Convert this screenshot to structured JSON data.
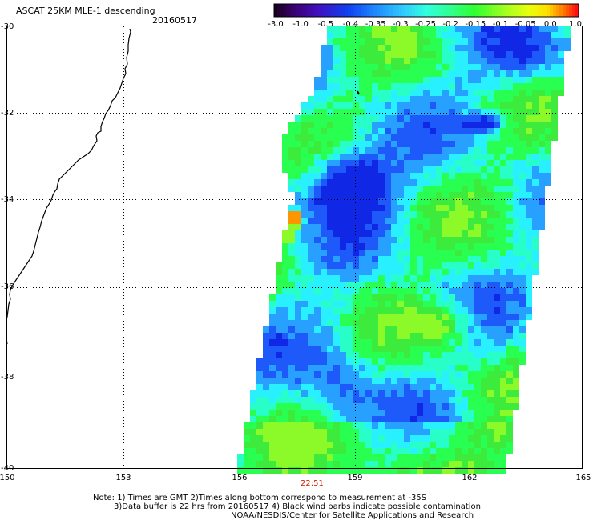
{
  "header": {
    "title": "ASCAT 25KM MLE-1 descending",
    "date": "20160517"
  },
  "colorbar": {
    "labels": [
      "-3.0",
      "-1.0",
      "-0.5",
      "-0.4",
      "-0.35",
      "-0.3",
      "-0.25",
      "-0.2",
      "-0.15",
      "-0.1",
      "-0.05",
      "0.0",
      "1.0"
    ],
    "colors": [
      "#2a0030",
      "#4a0090",
      "#2a20d0",
      "#1050f0",
      "#2090ff",
      "#20d0ff",
      "#20ffd0",
      "#20ff40",
      "#80ff20",
      "#d0ff10",
      "#ffff00",
      "#ff9000",
      "#ff2020"
    ]
  },
  "axes": {
    "lat_ticks": [
      "-30",
      "-32",
      "-34",
      "-36",
      "-38",
      "-40"
    ],
    "lon_ticks": [
      "150",
      "153",
      "156",
      "159",
      "162",
      "165"
    ]
  },
  "pass_time": "22:51",
  "notes": {
    "line1": "Note: 1) Times are GMT 2)Times along bottom correspond to measurement at -35S",
    "line2": "3)Data buffer is 22 hrs from 20160517 4) Black wind barbs indicate possible contamination",
    "line3": "NOAA/NESDIS/Center for Satellite Applications and Research"
  }
}
